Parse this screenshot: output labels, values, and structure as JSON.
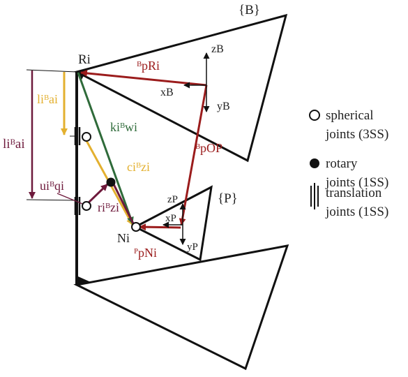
{
  "colors": {
    "structure": "#111111",
    "dark_red": "#9b1c1c",
    "maroon": "#6e1a3c",
    "green": "#2f6b3a",
    "gold": "#e3b02f"
  },
  "frames": {
    "base": "{B}",
    "platform": "{P}"
  },
  "points": {
    "R": "Ri",
    "N": "Ni"
  },
  "axes": {
    "zB": "zB",
    "xB": "xB",
    "yB": "yB",
    "zP": "zP",
    "xP": "xP",
    "yP": "yP"
  },
  "vectors": {
    "BpRi": "ᴮpRi",
    "BpOP": "ᴮpOP",
    "PpNi": "ᴾpNi",
    "liBai_gold": "liᴮai",
    "liBai_maroon": "liᴮai",
    "kiBwi": "kiᴮwi",
    "ciBzi": "ciᴮzi",
    "uiBqi": "uiᴮqi",
    "riBzi": "riᴮzi"
  },
  "legend": [
    {
      "icon": "open-circle",
      "line1": "spherical",
      "line2": "joints (3SS)"
    },
    {
      "icon": "filled-circle",
      "line1": "rotary",
      "line2": "joints (1SS)"
    },
    {
      "icon": "triple-bar",
      "line1": "translation",
      "line2": "joints (1SS)"
    }
  ]
}
